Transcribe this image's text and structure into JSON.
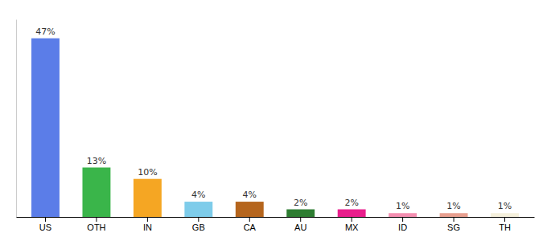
{
  "chart_data": {
    "type": "bar",
    "categories": [
      "US",
      "OTH",
      "IN",
      "GB",
      "CA",
      "AU",
      "MX",
      "ID",
      "SG",
      "TH"
    ],
    "values": [
      47,
      13,
      10,
      4,
      4,
      2,
      2,
      1,
      1,
      1
    ],
    "value_labels": [
      "47%",
      "13%",
      "10%",
      "4%",
      "4%",
      "2%",
      "2%",
      "1%",
      "1%",
      "1%"
    ],
    "colors": [
      "#5b7de8",
      "#3ab54a",
      "#f5a623",
      "#7eccea",
      "#b5651d",
      "#2e7d32",
      "#e91e8c",
      "#f48fb1",
      "#e8a090",
      "#f5f0dc"
    ],
    "ylim": [
      0,
      52
    ],
    "tick_labels": "x"
  }
}
